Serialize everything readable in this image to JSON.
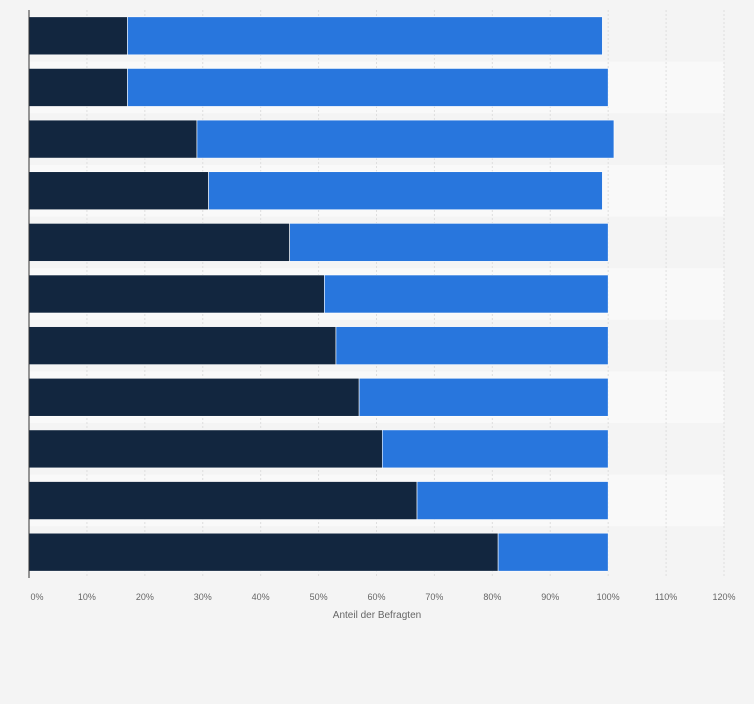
{
  "chart_data": {
    "type": "bar",
    "orientation": "horizontal",
    "stacked": true,
    "xlabel": "Anteil der Befragten",
    "xlim": [
      0,
      120
    ],
    "x_ticks": [
      "0%",
      "10%",
      "20%",
      "30%",
      "40%",
      "50%",
      "60%",
      "70%",
      "80%",
      "90%",
      "100%",
      "110%",
      "120%"
    ],
    "grid": true,
    "legend": "none",
    "series": [
      {
        "color": "#12263f",
        "values": [
          17,
          17,
          29,
          31,
          45,
          51,
          53,
          57,
          61,
          67,
          81
        ]
      },
      {
        "color": "#2876dd",
        "values": [
          82,
          83,
          72,
          68,
          55,
          49,
          47,
          43,
          39,
          33,
          19
        ]
      }
    ]
  }
}
